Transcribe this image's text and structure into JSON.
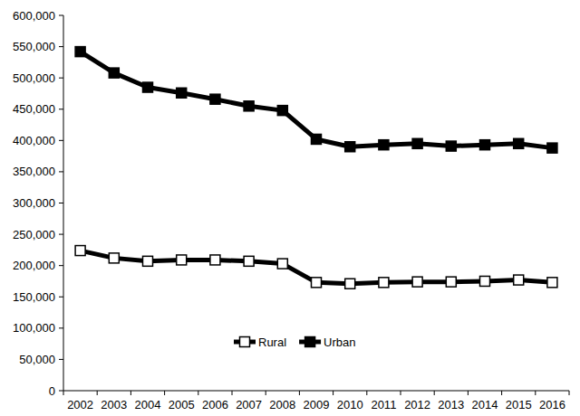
{
  "chart_data": {
    "type": "line",
    "categories": [
      "2002",
      "2003",
      "2004",
      "2005",
      "2006",
      "2007",
      "2008",
      "2009",
      "2010",
      "2011",
      "2012",
      "2013",
      "2014",
      "2015",
      "2016"
    ],
    "series": [
      {
        "name": "Rural",
        "color": "#000000",
        "marker": "square-open",
        "line_style": "solid",
        "values": [
          224000,
          212000,
          207000,
          209000,
          209000,
          207000,
          203000,
          173000,
          171000,
          173000,
          174000,
          174000,
          175000,
          177000,
          173000
        ]
      },
      {
        "name": "Urban",
        "color": "#000000",
        "marker": "square",
        "line_style": "solid",
        "values": [
          542000,
          508000,
          485000,
          476000,
          466000,
          455000,
          448000,
          402000,
          390000,
          393000,
          395000,
          391000,
          393000,
          395000,
          388000
        ]
      }
    ],
    "ylim": [
      0,
      600000
    ],
    "yticks": [
      0,
      {
        "value": 50000,
        "label": "50,000"
      },
      {
        "value": 100000,
        "label": "100,000"
      },
      {
        "value": 150000,
        "label": "150,000"
      },
      {
        "value": 200000,
        "label": "200,000"
      },
      {
        "value": 250000,
        "label": "250,000"
      },
      {
        "value": 300000,
        "label": "300,000"
      },
      {
        "value": 350000,
        "label": "350,000"
      },
      {
        "value": 400000,
        "label": "400,000"
      },
      {
        "value": 450000,
        "label": "450,000"
      },
      {
        "value": 500000,
        "label": "500,000"
      },
      {
        "value": 550000,
        "label": "550,000"
      },
      {
        "value": 600000,
        "label": "600,000"
      }
    ],
    "grid": false,
    "legend": "bottom"
  }
}
